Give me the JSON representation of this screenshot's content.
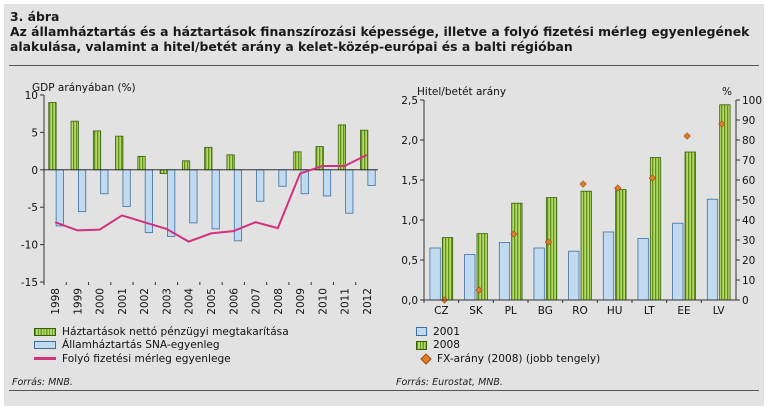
{
  "header": {
    "figure_no": "3. ábra",
    "title_line1": "Az államháztartás és a háztartások finanszírozási képessége, illetve a folyó fizetési mérleg egyenlegének",
    "title_line2": "alakulása, valamint a hitel/betét arány a kelet-közép-európai és a balti régióban"
  },
  "colors": {
    "green_bar": "#8dbf3a",
    "blue_bar": "#c2daf0",
    "line": "#d3317e",
    "diamond": "#df7f29",
    "background": "#e2e2e2"
  },
  "chart_data": [
    {
      "type": "bar",
      "title": "",
      "ylabel": "GDP arányában (%)",
      "ylim": [
        -15,
        10
      ],
      "yticks": [
        10,
        5,
        0,
        -5,
        -10,
        -15
      ],
      "categories": [
        "1998",
        "1999",
        "2000",
        "2001",
        "2002",
        "2003",
        "2004",
        "2005",
        "2006",
        "2007",
        "2008",
        "2009",
        "2010",
        "2011",
        "2012"
      ],
      "series": [
        {
          "name": "Háztartások nettó pénzügyi megtakarítása",
          "kind": "bar",
          "values": [
            9.0,
            6.5,
            5.2,
            4.5,
            1.8,
            -0.5,
            1.2,
            3.0,
            2.0,
            0.0,
            0.0,
            2.4,
            3.1,
            6.0,
            5.3
          ]
        },
        {
          "name": "Államháztartás SNA-egyenleg",
          "kind": "bar",
          "values": [
            -7.5,
            -5.6,
            -3.2,
            -4.9,
            -8.4,
            -8.9,
            -7.1,
            -7.9,
            -9.5,
            -4.2,
            -2.2,
            -3.2,
            -3.5,
            -5.8,
            -2.1
          ]
        },
        {
          "name": "Folyó fizetési mérleg egyenlege",
          "kind": "line",
          "values": [
            -7.0,
            -8.1,
            -8.0,
            -6.1,
            -7.0,
            -7.9,
            -9.6,
            -8.5,
            -8.2,
            -7.0,
            -7.8,
            -0.5,
            0.5,
            0.5,
            2.0
          ]
        }
      ],
      "legend": "bottom",
      "source": "Forrás: MNB."
    },
    {
      "type": "bar",
      "title": "",
      "ylabel": "Hitel/betét arány",
      "ylabel_right": "%",
      "ylim": [
        0,
        2.5
      ],
      "ylim_right": [
        0,
        100
      ],
      "yticks": [
        "2,5",
        "2,0",
        "1,5",
        "1,0",
        "0,5",
        "0,0"
      ],
      "yticks_right": [
        "100",
        "90",
        "80",
        "70",
        "60",
        "50",
        "40",
        "30",
        "20",
        "10",
        "0"
      ],
      "categories": [
        "CZ",
        "SK",
        "PL",
        "BG",
        "RO",
        "HU",
        "LT",
        "EE",
        "LV"
      ],
      "series": [
        {
          "name": "2001",
          "kind": "bar",
          "values": [
            0.65,
            0.57,
            0.72,
            0.65,
            0.61,
            0.85,
            0.77,
            0.96,
            1.26
          ]
        },
        {
          "name": "2008",
          "kind": "bar",
          "values": [
            0.78,
            0.83,
            1.21,
            1.28,
            1.36,
            1.38,
            1.78,
            1.85,
            2.44
          ]
        },
        {
          "name": "FX-arány (2008) (jobb tengely)",
          "kind": "marker",
          "axis": "right",
          "values": [
            0,
            5,
            33,
            29,
            58,
            56,
            61,
            82,
            88
          ]
        }
      ],
      "legend": "bottom",
      "source": "Forrás: Eurostat, MNB."
    }
  ]
}
